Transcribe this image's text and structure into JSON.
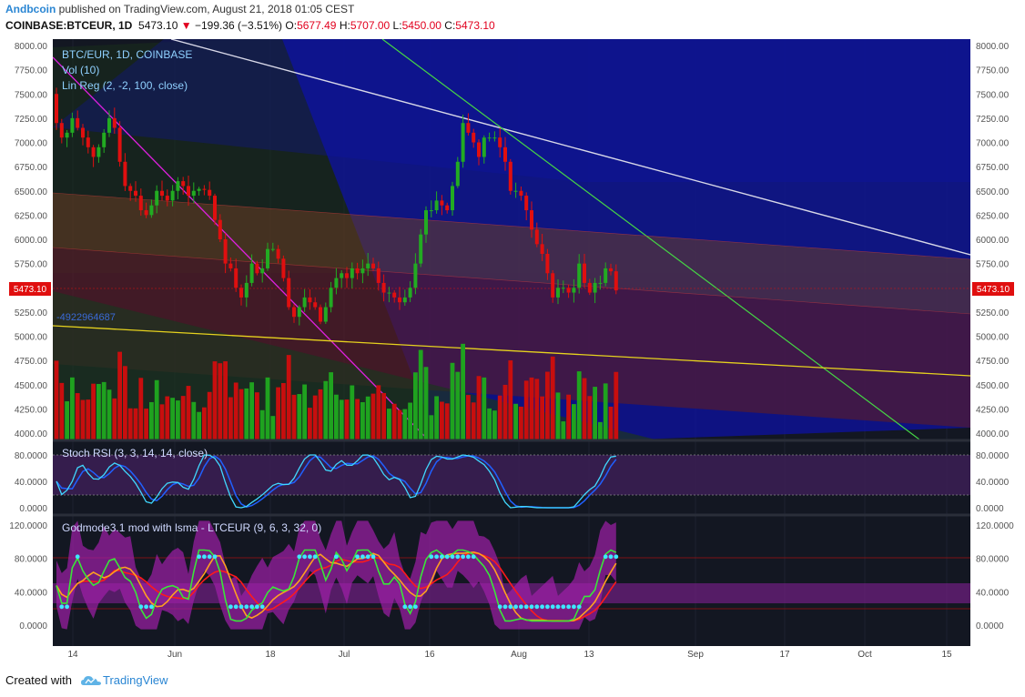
{
  "header": {
    "author": "Andbcoin",
    "published": "published on TradingView.com, August 21, 2018 01:05 CEST",
    "symbol": "COINBASE:BTCEUR, 1D",
    "last": "5473.10",
    "change": "−199.36 (−3.51%)",
    "o_label": "O:",
    "o": "5677.49",
    "h_label": "H:",
    "h": "5707.00",
    "l_label": "L:",
    "l": "5450.00",
    "c_label": "C:",
    "c": "5473.10"
  },
  "legend": {
    "main": "BTC/EUR, 1D, COINBASE",
    "vol": "Vol (10)",
    "linreg": "Lin Reg (2, -2, 100, close)",
    "fib_label": "-4922964687",
    "stoch": "Stoch RSI (3, 3, 14, 14, close)",
    "godmode": "Godmode3.1 mod with lsma - LTCEUR (9, 6, 3, 32, 0)"
  },
  "price_badge": "5473.10",
  "footer": {
    "created": "Created with",
    "brand": "TradingView"
  },
  "colors": {
    "up": "#22ab22",
    "down": "#e00f0f",
    "bg": "#131722",
    "accent": "#2a86d3"
  },
  "chart_data": [
    {
      "type": "candlestick",
      "title": "BTC/EUR, 1D, COINBASE",
      "ylim": [
        3950,
        8050
      ],
      "y_ticks": [
        "8000.00",
        "7750.00",
        "7500.00",
        "7250.00",
        "7000.00",
        "6750.00",
        "6500.00",
        "6250.00",
        "6000.00",
        "5750.00",
        "5500.00",
        "5250.00",
        "5000.00",
        "4750.00",
        "4500.00",
        "4250.00",
        "4000.00"
      ],
      "x_ticks": [
        "14",
        "Jun",
        "18",
        "Jul",
        "16",
        "Aug",
        "13",
        "Sep",
        "17",
        "Oct",
        "15"
      ],
      "close": [
        7200,
        7050,
        7100,
        7250,
        7150,
        7050,
        6950,
        6850,
        6950,
        7100,
        7250,
        7150,
        6800,
        6550,
        6500,
        6450,
        6300,
        6250,
        6350,
        6500,
        6450,
        6400,
        6500,
        6600,
        6550,
        6450,
        6500,
        6520,
        6510,
        6450,
        6200,
        6000,
        5750,
        5700,
        5500,
        5400,
        5550,
        5750,
        5650,
        5700,
        5900,
        5900,
        5800,
        5600,
        5300,
        5200,
        5300,
        5400,
        5350,
        5300,
        5150,
        5300,
        5500,
        5600,
        5650,
        5600,
        5700,
        5650,
        5700,
        5750,
        5700,
        5550,
        5450,
        5450,
        5400,
        5350,
        5400,
        5500,
        5750,
        6050,
        6300,
        6300,
        6400,
        6350,
        6300,
        6550,
        6800,
        7200,
        7100,
        7000,
        6850,
        7050,
        7050,
        7050,
        6950,
        6800,
        6500,
        6500,
        6450,
        6300,
        6100,
        5950,
        5850,
        5650,
        5400,
        5500,
        5500,
        5450,
        5500,
        5750,
        5550,
        5450,
        5550,
        5550,
        5700,
        5670,
        5473
      ]
    },
    {
      "type": "bar",
      "title": "Vol (10)"
    },
    {
      "type": "line",
      "title": "Stoch RSI (3, 3, 14, 14, close)",
      "ylim": [
        0,
        100
      ],
      "y_ticks": [
        "80.0000",
        "40.0000",
        "0.0000"
      ]
    },
    {
      "type": "line",
      "title": "Godmode3.1 mod with lsma - LTCEUR (9, 6, 3, 32, 0)",
      "ylim": [
        -10,
        130
      ],
      "y_ticks": [
        "120.0000",
        "80.0000",
        "40.0000",
        "0.0000"
      ]
    }
  ]
}
